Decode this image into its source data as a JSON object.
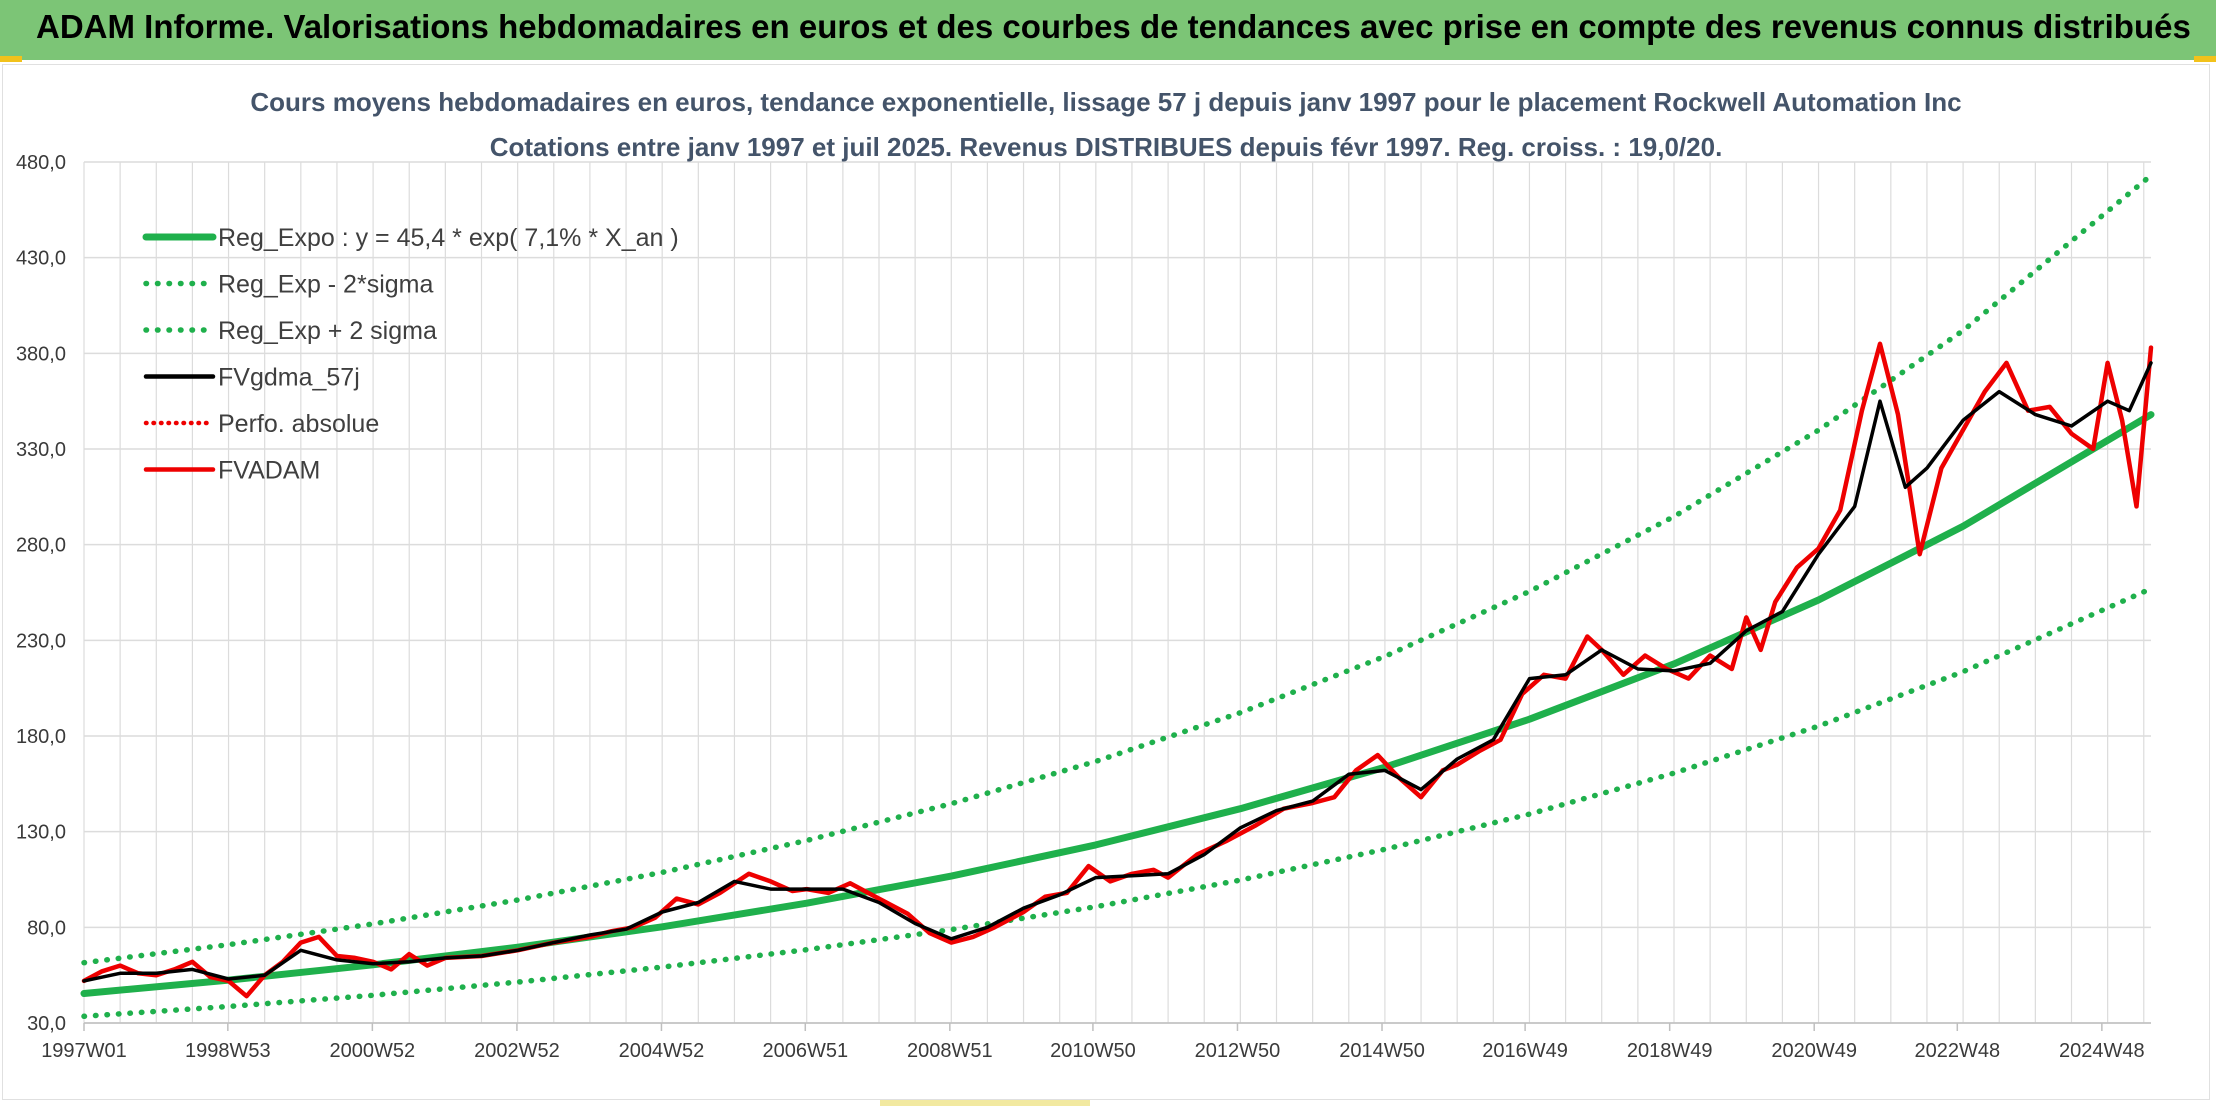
{
  "header": {
    "title": "ADAM Informe. Valorisations hebdomadaires en euros et des courbes de tendances avec prise en compte des revenus connus distribués"
  },
  "colors": {
    "header_bg": "#7cc576",
    "regression": "#1fb04c",
    "fvgdma": "#000000",
    "fvadam": "#ee0000",
    "perfo": "#ee0000",
    "grid": "#dcdcdc",
    "title_text": "#44546a"
  },
  "chart_data": {
    "type": "line",
    "title": "Cours moyens hebdomadaires en euros, tendance exponentielle, lissage 57 j depuis janv 1997 pour le placement Rockwell Automation Inc",
    "subtitle": "Cotations entre janv 1997 et juil 2025. Revenus DISTRIBUES depuis févr 1997. Reg. croiss. : 19,0/20.",
    "xlabel": "",
    "ylabel": "",
    "ylim": [
      30,
      480
    ],
    "yticks": [
      "30,0",
      "80,0",
      "130,0",
      "180,0",
      "230,0",
      "280,0",
      "330,0",
      "380,0",
      "430,0",
      "480,0"
    ],
    "xrange": [
      1997.0,
      2025.6
    ],
    "xticks": [
      {
        "x": 1997.0,
        "label": "1997W01"
      },
      {
        "x": 1998.99,
        "label": "1998W53"
      },
      {
        "x": 2000.99,
        "label": "2000W52"
      },
      {
        "x": 2002.99,
        "label": "2002W52"
      },
      {
        "x": 2004.99,
        "label": "2004W52"
      },
      {
        "x": 2006.98,
        "label": "2006W51"
      },
      {
        "x": 2008.98,
        "label": "2008W51"
      },
      {
        "x": 2010.96,
        "label": "2010W50"
      },
      {
        "x": 2012.96,
        "label": "2012W50"
      },
      {
        "x": 2014.96,
        "label": "2014W50"
      },
      {
        "x": 2016.94,
        "label": "2016W49"
      },
      {
        "x": 2018.94,
        "label": "2018W49"
      },
      {
        "x": 2020.94,
        "label": "2020W49"
      },
      {
        "x": 2022.92,
        "label": "2022W48"
      },
      {
        "x": 2024.92,
        "label": "2024W48"
      }
    ],
    "grid": true,
    "legend_position": "top-left",
    "legend": [
      {
        "key": "reg",
        "label": "Reg_Expo : y = 45,4 * exp( 7,1% *  X_an )",
        "style": "solid-green"
      },
      {
        "key": "lower",
        "label": "Reg_Exp - 2*sigma",
        "style": "dotted-green"
      },
      {
        "key": "upper",
        "label": "Reg_Exp + 2 sigma",
        "style": "dotted-green"
      },
      {
        "key": "fvgdma",
        "label": "FVgdma_57j",
        "style": "solid-black"
      },
      {
        "key": "perfo",
        "label": "Perfo. absolue",
        "style": "dotted-red"
      },
      {
        "key": "fvadam",
        "label": "FVADAM",
        "style": "solid-red"
      }
    ],
    "series": [
      {
        "key": "reg",
        "x": [
          1997.0,
          1999.0,
          2001.0,
          2003.0,
          2005.0,
          2007.0,
          2009.0,
          2011.0,
          2013.0,
          2015.0,
          2017.0,
          2019.0,
          2021.0,
          2023.0,
          2025.6
        ],
        "values": [
          45.4,
          52.4,
          60.4,
          69.6,
          80.3,
          92.6,
          106.8,
          123.1,
          142.0,
          163.7,
          188.8,
          217.7,
          251.1,
          289.6,
          348.0
        ]
      },
      {
        "key": "upper",
        "x": [
          1997.0,
          1999.0,
          2001.0,
          2003.0,
          2005.0,
          2007.0,
          2009.0,
          2011.0,
          2013.0,
          2015.0,
          2017.0,
          2019.0,
          2021.0,
          2023.0,
          2025.6
        ],
        "values": [
          61.5,
          70.9,
          81.8,
          94.3,
          108.7,
          125.4,
          144.6,
          166.7,
          192.2,
          221.6,
          255.6,
          294.7,
          339.8,
          391.9,
          473.0
        ]
      },
      {
        "key": "lower",
        "x": [
          1997.0,
          1999.0,
          2001.0,
          2003.0,
          2005.0,
          2007.0,
          2009.0,
          2011.0,
          2013.0,
          2015.0,
          2017.0,
          2019.0,
          2021.0,
          2023.0,
          2025.6
        ],
        "values": [
          33.5,
          38.6,
          44.5,
          51.4,
          59.2,
          68.3,
          78.8,
          90.8,
          104.7,
          120.8,
          139.2,
          160.6,
          185.2,
          213.6,
          257.0
        ]
      },
      {
        "key": "fvadam",
        "x": [
          1997.0,
          1997.25,
          1997.5,
          1997.75,
          1998.0,
          1998.25,
          1998.5,
          1998.75,
          1999.0,
          1999.25,
          1999.5,
          1999.75,
          2000.0,
          2000.25,
          2000.5,
          2000.75,
          2001.0,
          2001.25,
          2001.5,
          2001.75,
          2002.0,
          2002.5,
          2003.0,
          2003.5,
          2004.0,
          2004.3,
          2004.6,
          2004.9,
          2005.2,
          2005.5,
          2005.8,
          2006.2,
          2006.5,
          2006.8,
          2007.0,
          2007.3,
          2007.6,
          2008.0,
          2008.4,
          2008.7,
          2009.0,
          2009.3,
          2009.6,
          2010.0,
          2010.3,
          2010.6,
          2010.9,
          2011.2,
          2011.5,
          2011.8,
          2012.0,
          2012.4,
          2012.8,
          2013.2,
          2013.6,
          2014.0,
          2014.3,
          2014.6,
          2014.9,
          2015.2,
          2015.5,
          2015.8,
          2016.0,
          2016.3,
          2016.6,
          2016.9,
          2017.2,
          2017.5,
          2017.8,
          2018.0,
          2018.3,
          2018.6,
          2018.9,
          2019.2,
          2019.5,
          2019.8,
          2020.0,
          2020.2,
          2020.4,
          2020.7,
          2021.0,
          2021.3,
          2021.6,
          2021.85,
          2022.1,
          2022.4,
          2022.7,
          2023.0,
          2023.3,
          2023.6,
          2023.9,
          2024.2,
          2024.5,
          2024.8,
          2025.0,
          2025.2,
          2025.4,
          2025.6
        ],
        "values": [
          52,
          57,
          60,
          56,
          55,
          58,
          62,
          54,
          52,
          44,
          55,
          62,
          72,
          75,
          65,
          64,
          62,
          58,
          66,
          60,
          64,
          65,
          68,
          72,
          75,
          78,
          80,
          85,
          95,
          92,
          98,
          108,
          104,
          99,
          100,
          98,
          103,
          95,
          87,
          77,
          72,
          75,
          80,
          88,
          96,
          98,
          112,
          104,
          108,
          110,
          106,
          118,
          125,
          133,
          142,
          145,
          148,
          162,
          170,
          158,
          148,
          162,
          165,
          172,
          178,
          202,
          212,
          210,
          232,
          225,
          212,
          222,
          215,
          210,
          222,
          215,
          242,
          225,
          250,
          268,
          278,
          298,
          350,
          385,
          348,
          275,
          320,
          340,
          360,
          375,
          350,
          352,
          338,
          330,
          375,
          345,
          300,
          383
        ]
      },
      {
        "key": "fvgdma",
        "x": [
          1997.0,
          1997.5,
          1998.0,
          1998.5,
          1999.0,
          1999.5,
          2000.0,
          2000.5,
          2001.0,
          2001.5,
          2002.0,
          2002.5,
          2003.0,
          2003.5,
          2004.0,
          2004.5,
          2005.0,
          2005.5,
          2006.0,
          2006.5,
          2007.0,
          2007.5,
          2008.0,
          2008.5,
          2009.0,
          2009.5,
          2010.0,
          2010.5,
          2011.0,
          2011.5,
          2012.0,
          2012.5,
          2013.0,
          2013.5,
          2014.0,
          2014.5,
          2015.0,
          2015.5,
          2016.0,
          2016.5,
          2017.0,
          2017.5,
          2018.0,
          2018.5,
          2019.0,
          2019.5,
          2020.0,
          2020.5,
          2021.0,
          2021.5,
          2021.85,
          2022.2,
          2022.5,
          2023.0,
          2023.5,
          2024.0,
          2024.5,
          2025.0,
          2025.3,
          2025.6
        ],
        "values": [
          52,
          56,
          56,
          58,
          53,
          55,
          68,
          63,
          61,
          62,
          64,
          65,
          68,
          72,
          76,
          79,
          88,
          93,
          104,
          100,
          100,
          100,
          93,
          82,
          74,
          80,
          90,
          97,
          106,
          107,
          108,
          118,
          132,
          141,
          146,
          160,
          162,
          152,
          168,
          178,
          210,
          212,
          225,
          215,
          214,
          218,
          235,
          245,
          275,
          300,
          355,
          310,
          320,
          345,
          360,
          348,
          342,
          355,
          350,
          375
        ]
      }
    ]
  }
}
